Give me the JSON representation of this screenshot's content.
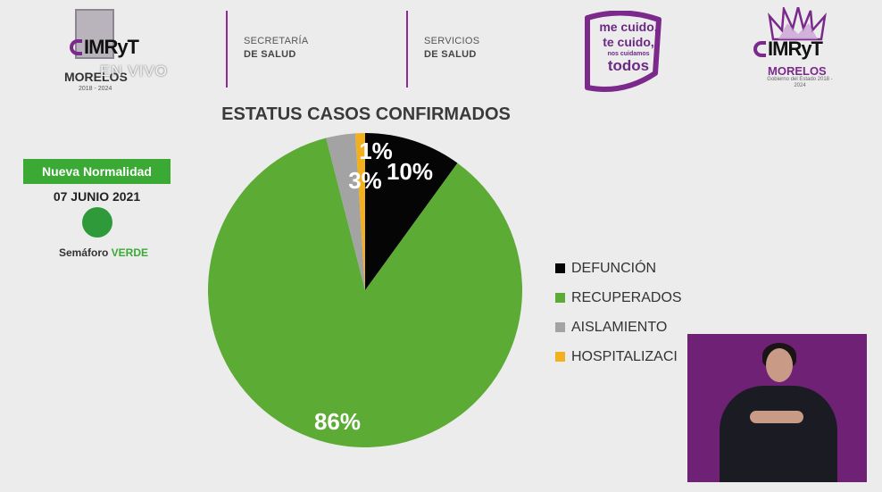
{
  "header": {
    "left_logo": {
      "brand": "IMRyT",
      "state": "MORELOS",
      "years": "2018 - 2024",
      "overlay": "EN VIVO"
    },
    "dept1": {
      "line1": "SECRETARÍA",
      "line2": "DE SALUD"
    },
    "dept2": {
      "line1": "SERVICIOS",
      "line2": "DE SALUD"
    },
    "badge": {
      "line1": "me cuido,",
      "line2": "te cuido,",
      "line3": "nos cuidamos",
      "line4": "todos"
    },
    "right_logo": {
      "brand": "IMRyT",
      "state": "MORELOS",
      "subtitle": "Gobierno del Estado 2018 - 2024"
    },
    "accent_color": "#7b2a8c"
  },
  "status_panel": {
    "badge_label": "Nueva Normalidad",
    "date": "07 JUNIO 2021",
    "semaforo_prefix": "Semáforo",
    "semaforo_color_word": "VERDE",
    "semaforo_color": "#2f9a3a"
  },
  "chart_data": {
    "type": "pie",
    "title": "ESTATUS CASOS CONFIRMADOS",
    "slices": [
      {
        "label": "DEFUNCIÓN",
        "value": 10,
        "display": "10%",
        "color": "#050505"
      },
      {
        "label": "RECUPERADOS",
        "value": 86,
        "display": "86%",
        "color": "#5cab34"
      },
      {
        "label": "AISLAMIENTO",
        "value": 3,
        "display": "3%",
        "color": "#a3a3a3"
      },
      {
        "label": "HOSPITALIZACI",
        "value": 1,
        "display": "1%",
        "color": "#f2b01e"
      }
    ],
    "legend_position": "right"
  },
  "interpreter": {
    "label": "sign-language-interpreter"
  }
}
